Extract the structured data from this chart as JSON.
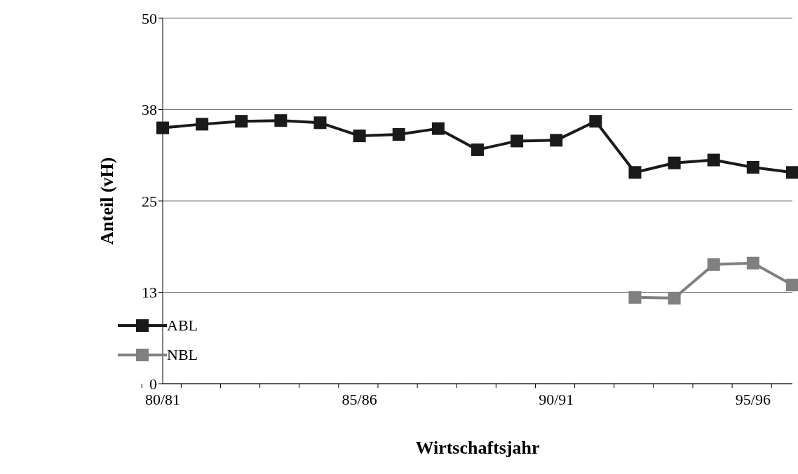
{
  "chart_data": {
    "type": "line",
    "xlabel": "Wirtschaftsjahr",
    "ylabel": "Anteil (vH)",
    "categories": [
      "80/81",
      null,
      null,
      null,
      null,
      "85/86",
      null,
      null,
      null,
      null,
      "90/91",
      null,
      null,
      null,
      null,
      "95/96",
      null
    ],
    "series": [
      {
        "name": "ABL",
        "color": "#1a1a1a",
        "values": [
          35.0,
          35.5,
          35.9,
          36.0,
          35.7,
          33.9,
          34.1,
          34.9,
          32.0,
          33.2,
          33.3,
          35.9,
          28.9,
          30.2,
          30.6,
          29.6,
          28.9
        ]
      },
      {
        "name": "NBL",
        "color": "#808080",
        "values": [
          null,
          null,
          null,
          null,
          null,
          null,
          null,
          null,
          null,
          null,
          null,
          null,
          11.8,
          11.7,
          16.3,
          16.5,
          13.5
        ]
      }
    ],
    "ylim": [
      0,
      50
    ],
    "yticks": [
      0,
      {
        "value": 12.5,
        "label": "13"
      },
      25,
      {
        "value": 37.5,
        "label": "38"
      },
      50
    ],
    "grid": "y",
    "legend": "bottom left",
    "marker": "square",
    "line_style": "solid"
  }
}
